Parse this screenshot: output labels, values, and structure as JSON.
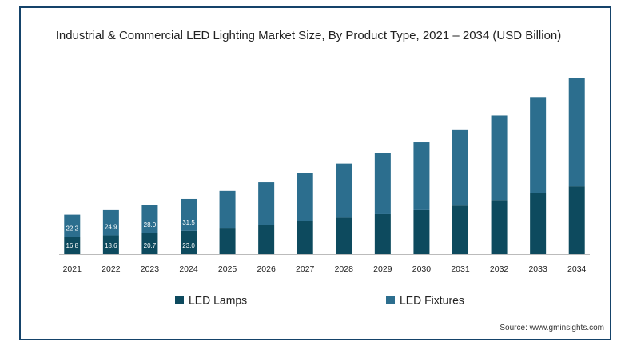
{
  "chart_data": {
    "type": "bar",
    "stacked": true,
    "title": "Industrial & Commercial LED Lighting Market Size, By Product Type, 2021 – 2034 (USD Billion)",
    "categories": [
      "2021",
      "2022",
      "2023",
      "2024",
      "2025",
      "2026",
      "2027",
      "2028",
      "2029",
      "2030",
      "2031",
      "2032",
      "2033",
      "2034"
    ],
    "series": [
      {
        "name": "LED Lamps",
        "color": "#0d4a5e",
        "values": [
          16.8,
          18.6,
          20.7,
          23.0,
          26.0,
          29.0,
          32.5,
          36.0,
          39.5,
          43.5,
          48.0,
          53.5,
          60.0,
          67.0
        ]
      },
      {
        "name": "LED Fixtures",
        "color": "#2c6e8e",
        "values": [
          22.2,
          24.9,
          28.0,
          31.5,
          36.5,
          42.0,
          47.5,
          53.5,
          60.5,
          67.0,
          74.5,
          83.5,
          94.5,
          107.0
        ]
      }
    ],
    "data_labels": {
      "LED Lamps": [
        "16.8",
        "18.6",
        "20.7",
        "23.0"
      ],
      "LED Fixtures": [
        "22.2",
        "24.9",
        "28.0",
        "31.5"
      ]
    },
    "xlabel": "",
    "ylabel": "",
    "ylim": [
      0,
      180
    ],
    "grid": false,
    "legend_position": "bottom"
  },
  "source": "Source: www.gminsights.com"
}
